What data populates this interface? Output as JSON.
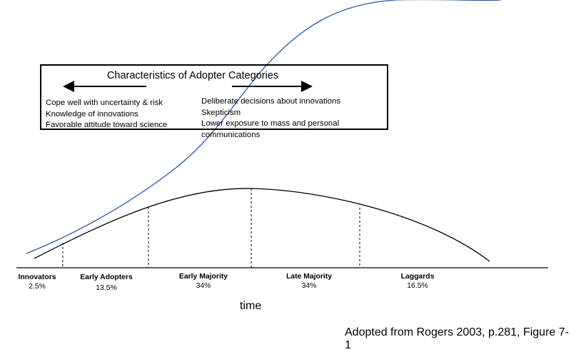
{
  "box": {
    "title": "Characteristics of Adopter Categories",
    "left_items": [
      "Cope well with uncertainty & risk",
      "Knowledge of innovations",
      "Favorable attitude toward science"
    ],
    "right_items": [
      "Deliberate decisions about innovations",
      "Skepticism",
      "Lower exposure to mass and personal communications"
    ]
  },
  "categories": [
    {
      "name": "Innovators",
      "percent": "2.5%"
    },
    {
      "name": "Early Adopters",
      "percent": "13.5%"
    },
    {
      "name": "Early Majority",
      "percent": "34%"
    },
    {
      "name": "Late Majority",
      "percent": "34%"
    },
    {
      "name": "Laggards",
      "percent": "16.5%"
    }
  ],
  "axis_label": "time",
  "credit": "Adopted from Rogers 2003, p.281, Figure 7-1",
  "colors": {
    "s_curve": "#2e59a7",
    "bell_curve": "#000000"
  }
}
